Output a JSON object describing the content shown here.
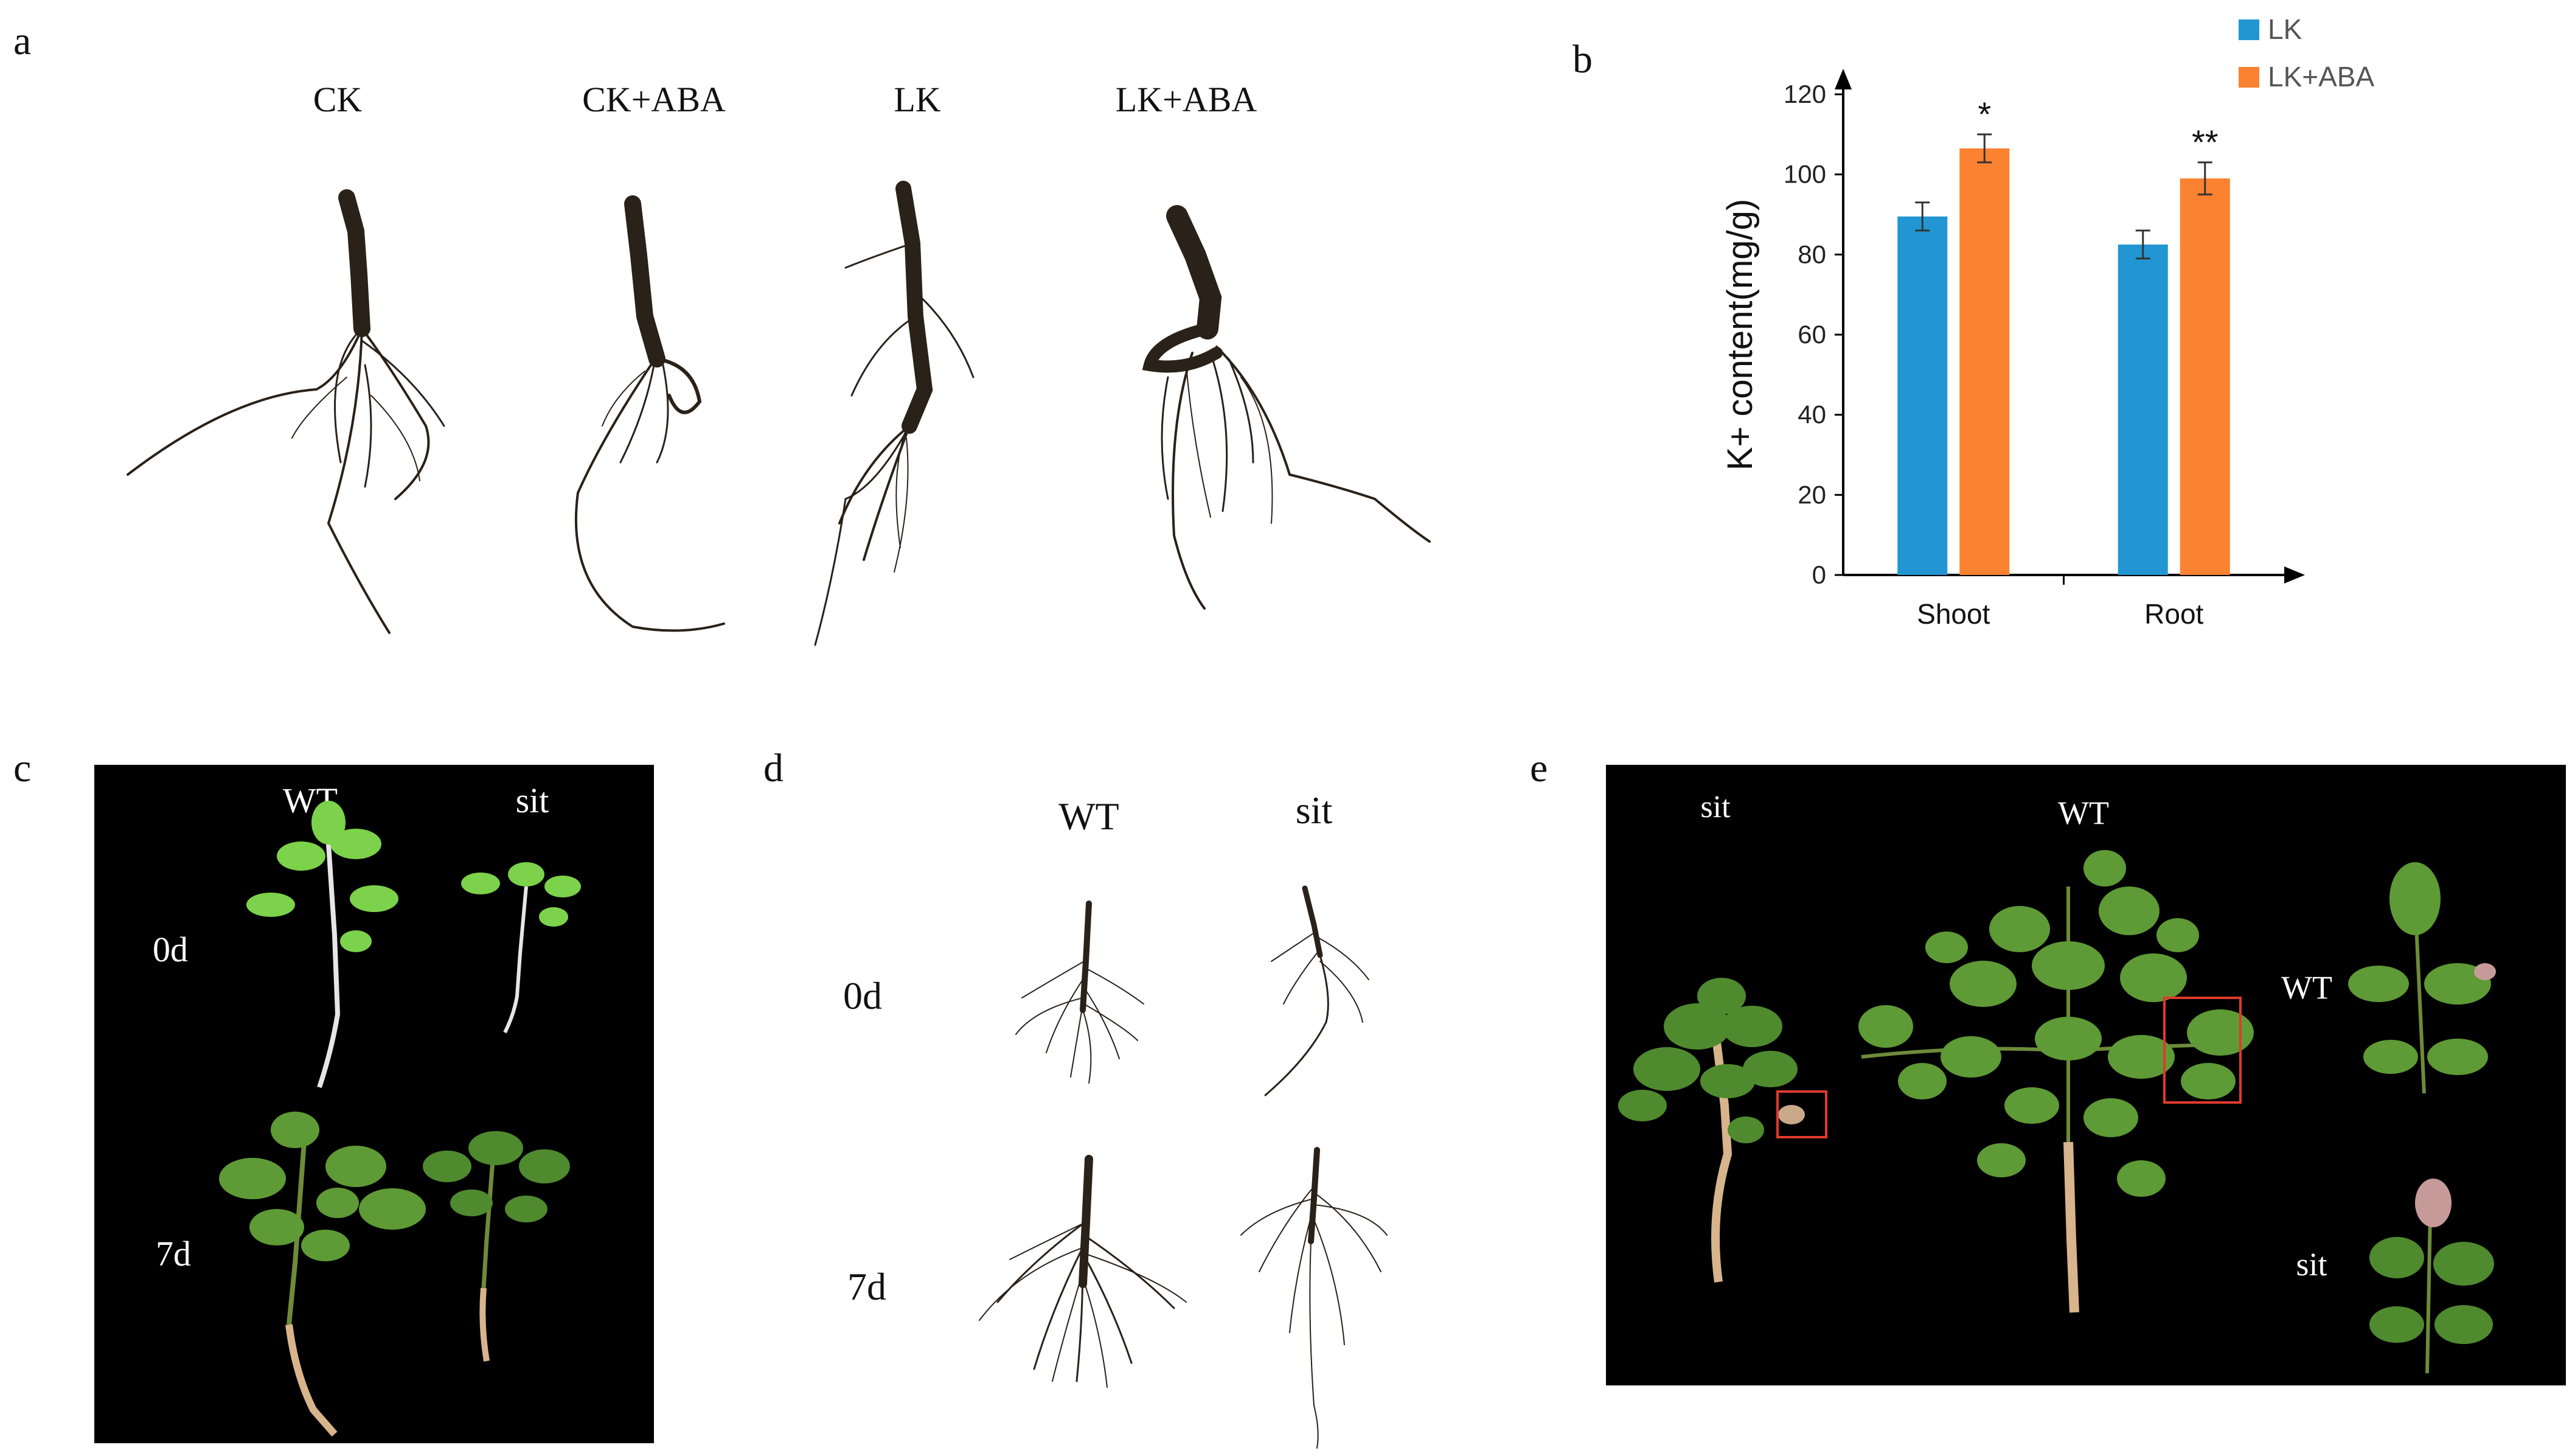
{
  "colors": {
    "lk": "#2196d3",
    "lk_aba": "#fb8231",
    "root": "#2a2118",
    "leaf": "#5e9a35",
    "leaf_dark": "#4f8a2e",
    "stem": "#d8b48c",
    "highlight": "#e03a2c"
  },
  "panels": {
    "a": {
      "letter": "a",
      "labels": [
        "CK",
        "CK+ABA",
        "LK",
        "LK+ABA"
      ]
    },
    "b": {
      "letter": "b"
    },
    "c": {
      "letter": "c",
      "col_labels": [
        "WT",
        "sit"
      ],
      "row_labels": [
        "0d",
        "7d"
      ]
    },
    "d": {
      "letter": "d",
      "col_labels": [
        "WT",
        "sit"
      ],
      "row_labels": [
        "0d",
        "7d"
      ]
    },
    "e": {
      "letter": "e",
      "plant_labels": [
        "sit",
        "WT"
      ],
      "leaf_labels": [
        "WT",
        "sit"
      ]
    }
  },
  "chart_data": {
    "type": "bar",
    "categories": [
      "Shoot",
      "Root"
    ],
    "series": [
      {
        "name": "LK",
        "values": [
          89.5,
          82.5
        ],
        "errors": [
          3.5,
          3.5
        ]
      },
      {
        "name": "LK+ABA",
        "values": [
          106.5,
          99
        ],
        "errors": [
          3.5,
          4
        ]
      }
    ],
    "significance": [
      {
        "category": "Shoot",
        "label": "*"
      },
      {
        "category": "Root",
        "label": "**"
      }
    ],
    "ylabel": "K+ content(mg/g)",
    "xlabel": "",
    "ylim": [
      0,
      120
    ],
    "yticks": [
      0,
      20,
      40,
      60,
      80,
      100,
      120
    ],
    "legend": "top-right"
  }
}
